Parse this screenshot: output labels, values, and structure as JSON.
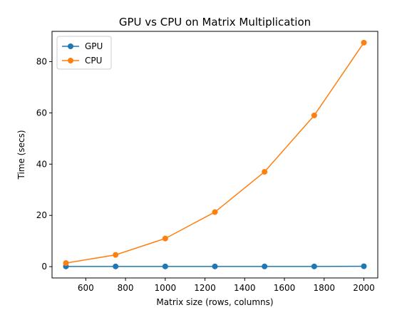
{
  "chart_data": {
    "type": "line",
    "title": "GPU vs CPU on Matrix Multiplication",
    "xlabel": "Matrix size (rows, columns)",
    "ylabel": "Time (secs)",
    "x": [
      500,
      750,
      1000,
      1250,
      1500,
      1750,
      2000
    ],
    "xlim": [
      430,
      2070
    ],
    "ylim": [
      -4.4,
      91.8
    ],
    "xticks": [
      600,
      800,
      1000,
      1200,
      1400,
      1600,
      1800,
      2000
    ],
    "yticks": [
      0,
      20,
      40,
      60,
      80
    ],
    "grid": false,
    "legend_position": "top-left",
    "series": [
      {
        "name": "GPU",
        "color": "#1f77b4",
        "values": [
          0.1,
          0.1,
          0.1,
          0.1,
          0.1,
          0.1,
          0.15
        ]
      },
      {
        "name": "CPU",
        "color": "#ff7f0e",
        "values": [
          1.4,
          4.6,
          11.0,
          21.3,
          37.0,
          59.0,
          87.4
        ]
      }
    ]
  }
}
